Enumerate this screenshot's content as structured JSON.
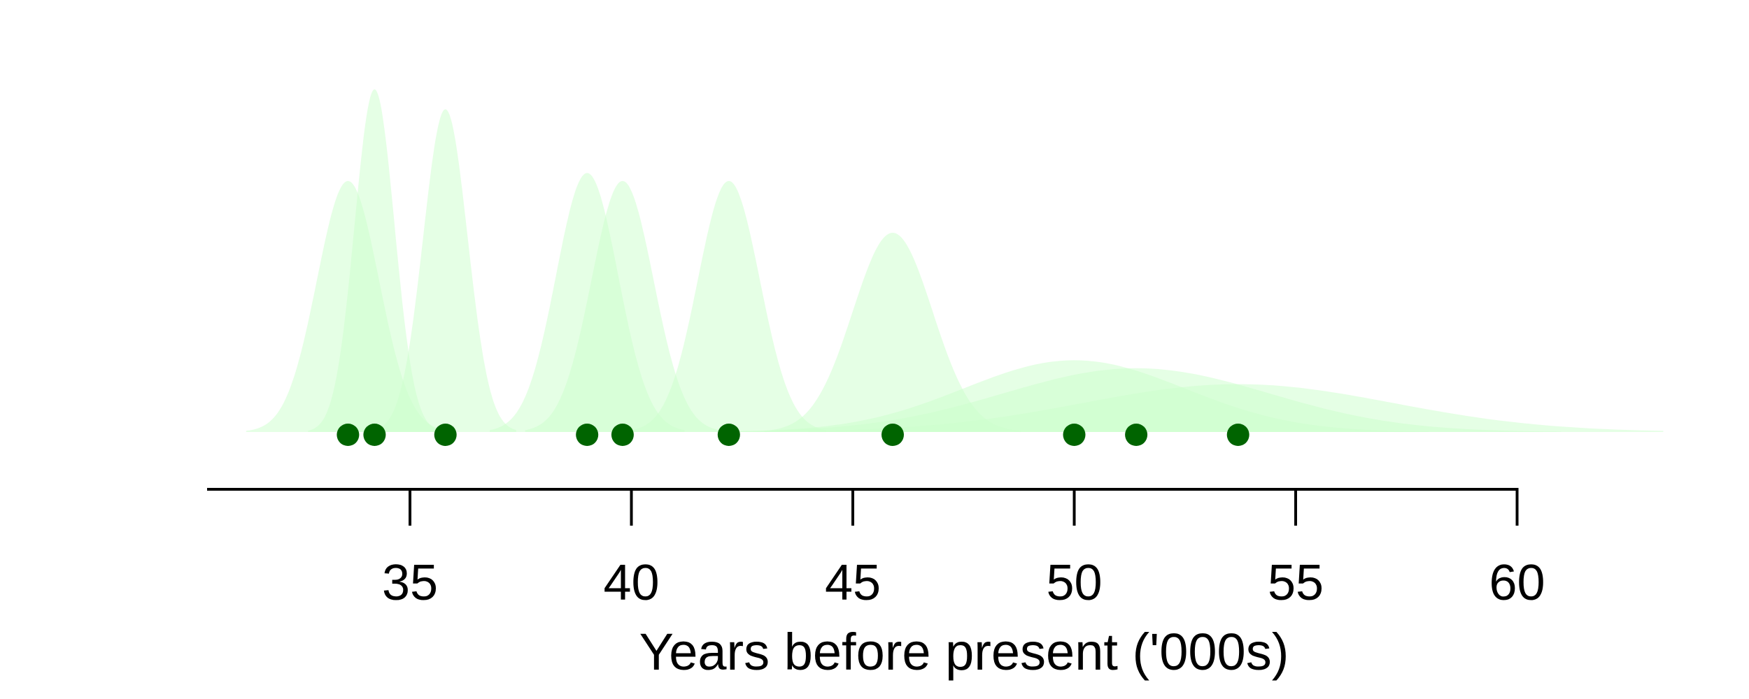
{
  "chart_data": {
    "type": "area",
    "title": "",
    "xlabel": "Years before present ('000s)",
    "ylabel": "",
    "xlim": [
      30.45,
      60
    ],
    "axis_line_range": [
      30.45,
      60
    ],
    "x_ticks": [
      35,
      40,
      45,
      50,
      55,
      60
    ],
    "x_tick_labels": [
      "35",
      "40",
      "45",
      "50",
      "55",
      "60"
    ],
    "density_scale": 1.0,
    "grid": false,
    "legend": "none",
    "colors": {
      "density_fill": "#ccffcc",
      "density_opacity": 0.5,
      "point": "#006400",
      "axis": "#000000"
    },
    "series": [
      {
        "estimate": 33.6,
        "sd": 0.7,
        "peak": 0.63,
        "extent": [
          31.3,
          35.9
        ]
      },
      {
        "estimate": 34.2,
        "sd": 0.45,
        "peak": 0.86,
        "extent": [
          32.7,
          35.7
        ]
      },
      {
        "estimate": 35.8,
        "sd": 0.5,
        "peak": 0.81,
        "extent": [
          34.3,
          37.4
        ]
      },
      {
        "estimate": 39.0,
        "sd": 0.7,
        "peak": 0.65,
        "extent": [
          36.8,
          41.2
        ]
      },
      {
        "estimate": 39.8,
        "sd": 0.7,
        "peak": 0.63,
        "extent": [
          37.6,
          42.0
        ]
      },
      {
        "estimate": 42.2,
        "sd": 0.7,
        "peak": 0.63,
        "extent": [
          40.0,
          44.4
        ]
      },
      {
        "estimate": 45.9,
        "sd": 0.9,
        "peak": 0.5,
        "extent": [
          43.0,
          48.8
        ]
      },
      {
        "estimate": 50.0,
        "sd": 2.5,
        "peak": 0.18,
        "extent": [
          42.0,
          58.0
        ]
      },
      {
        "estimate": 51.4,
        "sd": 3.0,
        "peak": 0.16,
        "extent": [
          42.0,
          61.0
        ]
      },
      {
        "estimate": 53.7,
        "sd": 3.5,
        "peak": 0.12,
        "extent": [
          44.0,
          63.3
        ]
      }
    ]
  }
}
